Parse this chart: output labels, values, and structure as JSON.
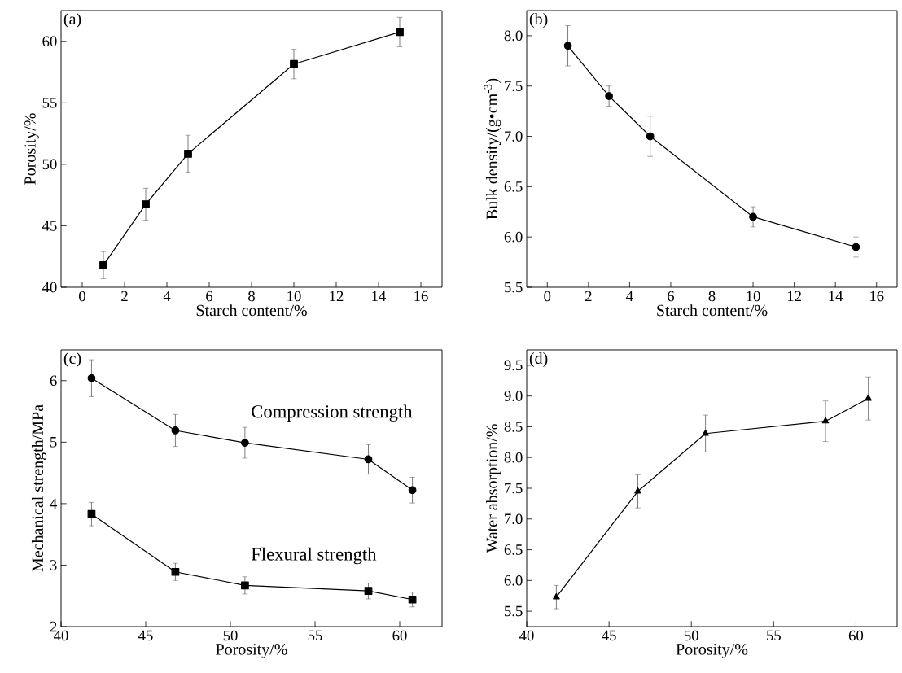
{
  "chart_data": [
    {
      "type": "line",
      "xlabel": "Starch content/%",
      "ylabel": "Porosity/%",
      "annotations": [
        "(a)"
      ],
      "x": [
        1,
        3,
        5,
        10,
        15
      ],
      "xlim": [
        -1,
        17
      ],
      "ylim": [
        40,
        62.5
      ],
      "xticks": [
        0,
        2,
        4,
        6,
        8,
        10,
        12,
        14,
        16
      ],
      "yticks": [
        40,
        45,
        50,
        55,
        60
      ],
      "marker": "square",
      "line_style": "solid",
      "series": [
        {
          "color": "#000000",
          "values": [
            41.8,
            46.75,
            50.86,
            58.15,
            60.75
          ],
          "errors": [
            1.1,
            1.3,
            1.5,
            1.2,
            1.2
          ]
        }
      ]
    },
    {
      "type": "line",
      "xlabel": "Starch content/%",
      "ylabel": "Bulk density/(g•cm$^{-3}$)",
      "annotations": [
        "(b)"
      ],
      "x": [
        1,
        3,
        5,
        10,
        15
      ],
      "xlim": [
        -1,
        17
      ],
      "ylim": [
        5.5,
        8.25
      ],
      "xticks": [
        0,
        2,
        4,
        6,
        8,
        10,
        12,
        14,
        16
      ],
      "yticks": [
        {
          "value": 5.5,
          "label": "5.5"
        },
        {
          "value": 6,
          "label": "6.0"
        },
        {
          "value": 6.5,
          "label": "6.5"
        },
        {
          "value": 7,
          "label": "7.0"
        },
        {
          "value": 7.5,
          "label": "7.5"
        },
        {
          "value": 8,
          "label": "8.0"
        }
      ],
      "marker": "circle",
      "line_style": "solid",
      "series": [
        {
          "color": "#000000",
          "values": [
            7.9,
            7.4,
            7.0,
            6.2,
            5.9
          ],
          "errors": [
            0.2,
            0.1,
            0.2,
            0.1,
            0.1
          ]
        }
      ]
    },
    {
      "type": "line",
      "xlabel": "Porosity/%",
      "ylabel": "Mechanical strength/MPa",
      "annotations": [
        "(c)"
      ],
      "x": [
        41.8,
        46.75,
        50.86,
        58.15,
        60.75
      ],
      "xlim": [
        40,
        62.5
      ],
      "ylim": [
        2,
        6.5
      ],
      "xticks": [
        40,
        45,
        50,
        55,
        60
      ],
      "yticks": [
        2,
        3,
        4,
        5,
        6
      ],
      "line_style": "solid",
      "series": [
        {
          "name": "Compression strength",
          "color": "#000000",
          "marker": "circle",
          "values": [
            6.04,
            5.19,
            4.99,
            4.72,
            4.22
          ],
          "errors": [
            0.3,
            0.26,
            0.25,
            0.24,
            0.21
          ]
        },
        {
          "name": "Flexural strength",
          "color": "#000000",
          "marker": "square",
          "values": [
            3.83,
            2.89,
            2.67,
            2.58,
            2.44
          ],
          "errors": [
            0.19,
            0.14,
            0.14,
            0.13,
            0.12
          ]
        }
      ]
    },
    {
      "type": "line",
      "xlabel": "Porosity/%",
      "ylabel": "Water absorption/%",
      "annotations": [
        "(d)"
      ],
      "x": [
        41.8,
        46.75,
        50.86,
        58.15,
        60.75
      ],
      "xlim": [
        40,
        62.5
      ],
      "ylim": [
        5.25,
        9.75
      ],
      "xticks": [
        40,
        45,
        50,
        55,
        60
      ],
      "yticks": [
        {
          "value": 5.5,
          "label": "5.5"
        },
        {
          "value": 6,
          "label": "6.0"
        },
        {
          "value": 6.5,
          "label": "6.5"
        },
        {
          "value": 7,
          "label": "7.0"
        },
        {
          "value": 7.5,
          "label": "7.5"
        },
        {
          "value": 8,
          "label": "8.0"
        },
        {
          "value": 8.5,
          "label": "8.5"
        },
        {
          "value": 9,
          "label": "9.0"
        },
        {
          "value": 9.5,
          "label": "9.5"
        }
      ],
      "marker": "triangle",
      "line_style": "solid",
      "series": [
        {
          "color": "#000000",
          "values": [
            5.73,
            7.45,
            8.39,
            8.59,
            8.96
          ],
          "errors": [
            0.19,
            0.27,
            0.3,
            0.33,
            0.35
          ]
        }
      ]
    }
  ]
}
